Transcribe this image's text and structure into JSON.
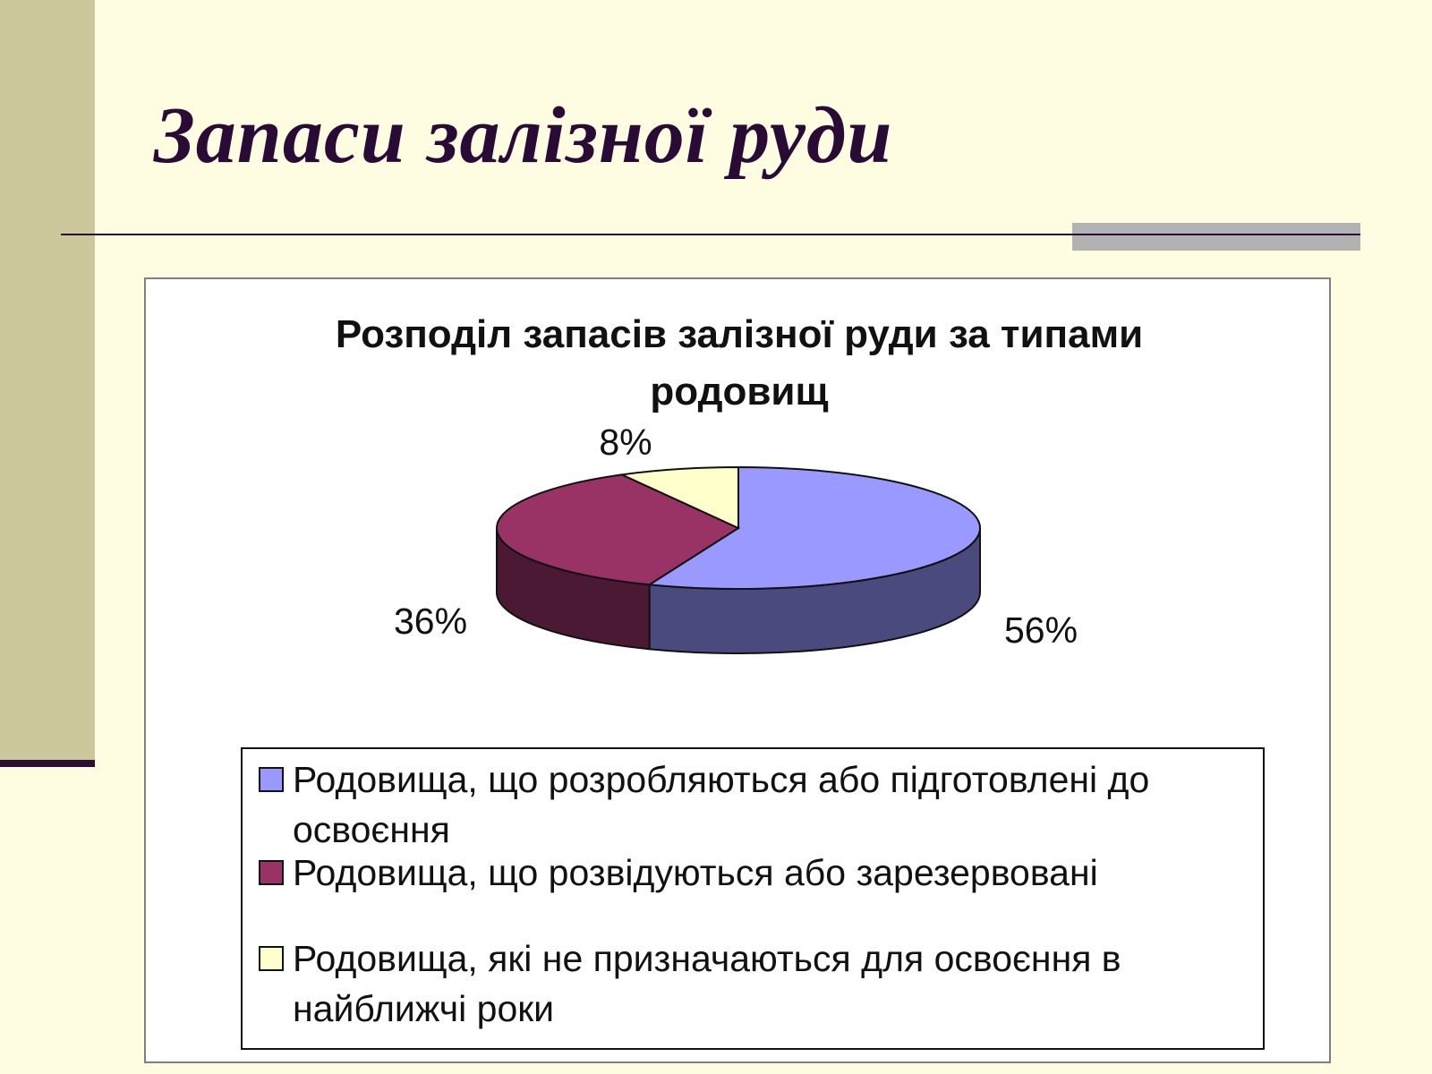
{
  "slide": {
    "title": "Запаси залізної руди"
  },
  "chart_data": {
    "type": "pie",
    "title_lines": [
      "Розподіл запасів залізної руди за типами",
      "родовищ"
    ],
    "slices": [
      {
        "label": "Родовища, що розробляються або підготовлені до освоєння",
        "value": 56,
        "display": "56%",
        "color": "#9999ff",
        "side_color": "#4a4a7e"
      },
      {
        "label": "Родовища, що розвідуються або зарезервовані",
        "value": 36,
        "display": "36%",
        "color": "#993366",
        "side_color": "#4b1933"
      },
      {
        "label": "Родовища, які не призначаються для освоєння в найближчі роки",
        "value": 8,
        "display": "8%",
        "color": "#ffffcc",
        "side_color": "#807f66"
      }
    ],
    "style": "3d",
    "legend_position": "bottom"
  }
}
